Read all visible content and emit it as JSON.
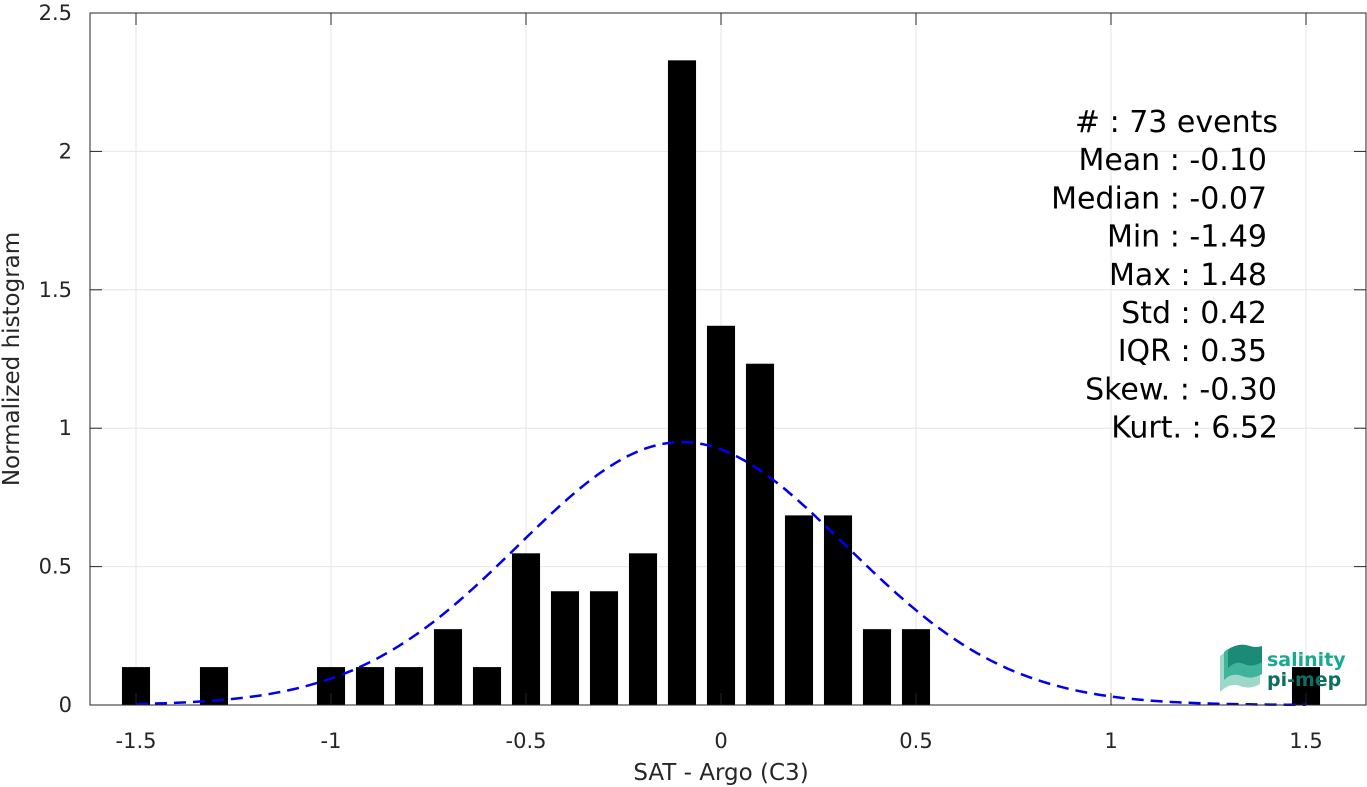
{
  "chart_data": {
    "type": "bar",
    "xlabel": "SAT - Argo (C3)",
    "ylabel": "Normalized histogram",
    "xlim": [
      -1.6,
      1.6
    ],
    "ylim": [
      0,
      2.5
    ],
    "xticks": [
      -1.5,
      -1,
      -0.5,
      0,
      0.5,
      1,
      1.5
    ],
    "xtick_labels": [
      "-1.5",
      "-1",
      "-0.5",
      "0",
      "0.5",
      "1",
      "1.5"
    ],
    "yticks": [
      0,
      0.5,
      1,
      1.5,
      2,
      2.5
    ],
    "ytick_labels": [
      "0",
      "0.5",
      "1",
      "1.5",
      "2",
      "2.5"
    ],
    "grid": true,
    "bin_width": 0.1,
    "bars": [
      {
        "x": -1.5,
        "value": 0.137
      },
      {
        "x": -1.3,
        "value": 0.137
      },
      {
        "x": -1.0,
        "value": 0.137
      },
      {
        "x": -0.9,
        "value": 0.137
      },
      {
        "x": -0.8,
        "value": 0.137
      },
      {
        "x": -0.7,
        "value": 0.274
      },
      {
        "x": -0.6,
        "value": 0.137
      },
      {
        "x": -0.5,
        "value": 0.548
      },
      {
        "x": -0.4,
        "value": 0.411
      },
      {
        "x": -0.3,
        "value": 0.411
      },
      {
        "x": -0.2,
        "value": 0.548
      },
      {
        "x": -0.1,
        "value": 2.329
      },
      {
        "x": 0.0,
        "value": 1.37
      },
      {
        "x": 0.1,
        "value": 1.233
      },
      {
        "x": 0.2,
        "value": 0.685
      },
      {
        "x": 0.3,
        "value": 0.685
      },
      {
        "x": 0.4,
        "value": 0.274
      },
      {
        "x": 0.5,
        "value": 0.274
      },
      {
        "x": 1.5,
        "value": 0.137
      }
    ],
    "fit_curve": {
      "type": "gaussian",
      "mean": -0.1,
      "std": 0.42,
      "style": "dashed",
      "color": "#0000ee"
    },
    "bar_color": "#000000"
  },
  "stats": [
    {
      "label": "#  : 73 events"
    },
    {
      "label": "Mean : -0.10"
    },
    {
      "label": "Median : -0.07"
    },
    {
      "label": "Min : -1.49"
    },
    {
      "label": "Max : 1.48"
    },
    {
      "label": "Std : 0.42"
    },
    {
      "label": "IQR : 0.35"
    },
    {
      "label": "Skew. : -0.30"
    },
    {
      "label": "Kurt. : 6.52"
    }
  ],
  "logo": {
    "line1": "salinity",
    "line2": "pi-mep",
    "color1": "#1aa88e",
    "color2": "#0e6e60"
  }
}
